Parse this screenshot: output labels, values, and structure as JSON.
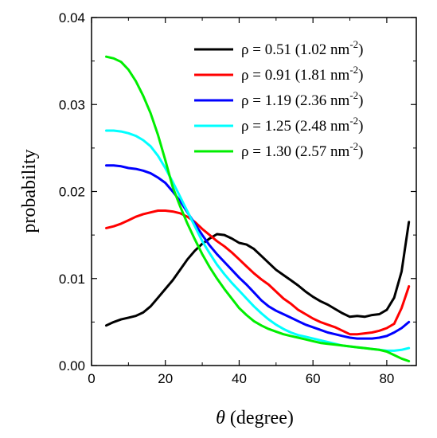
{
  "chart_data": {
    "type": "line",
    "xlabel_symbol": "θ",
    "xlabel_rest": " (degree)",
    "ylabel": "probability",
    "xlim": [
      0,
      88
    ],
    "ylim": [
      0,
      0.04
    ],
    "x_ticks": [
      0,
      20,
      40,
      60,
      80
    ],
    "x_tick_labels": [
      "0",
      "20",
      "40",
      "60",
      "80"
    ],
    "y_ticks": [
      0,
      0.01,
      0.02,
      0.03,
      0.04
    ],
    "y_tick_labels": [
      "0.00",
      "0.01",
      "0.02",
      "0.03",
      "0.04"
    ],
    "legend_position": "top-right",
    "series": [
      {
        "name": "ρ = 0.51",
        "label_main": "ρ = 0.51  (1.02 nm",
        "label_sup": "-2",
        "label_end": ")",
        "color": "#000000",
        "points": [
          [
            4,
            0.0046
          ],
          [
            6,
            0.005
          ],
          [
            8,
            0.0053
          ],
          [
            10,
            0.0055
          ],
          [
            12,
            0.0057
          ],
          [
            14,
            0.0061
          ],
          [
            16,
            0.0068
          ],
          [
            18,
            0.0078
          ],
          [
            20,
            0.0088
          ],
          [
            22,
            0.0098
          ],
          [
            24,
            0.011
          ],
          [
            26,
            0.0122
          ],
          [
            28,
            0.0132
          ],
          [
            30,
            0.014
          ],
          [
            32,
            0.0146
          ],
          [
            34,
            0.0151
          ],
          [
            36,
            0.015
          ],
          [
            38,
            0.0146
          ],
          [
            40,
            0.0141
          ],
          [
            42,
            0.0139
          ],
          [
            44,
            0.0134
          ],
          [
            46,
            0.0126
          ],
          [
            48,
            0.0118
          ],
          [
            50,
            0.011
          ],
          [
            52,
            0.0104
          ],
          [
            54,
            0.0098
          ],
          [
            56,
            0.0092
          ],
          [
            58,
            0.0085
          ],
          [
            60,
            0.0079
          ],
          [
            62,
            0.0074
          ],
          [
            64,
            0.007
          ],
          [
            66,
            0.0065
          ],
          [
            68,
            0.006
          ],
          [
            70,
            0.0056
          ],
          [
            72,
            0.0057
          ],
          [
            74,
            0.0056
          ],
          [
            76,
            0.0058
          ],
          [
            78,
            0.0059
          ],
          [
            80,
            0.0064
          ],
          [
            82,
            0.0078
          ],
          [
            84,
            0.0108
          ],
          [
            86,
            0.0165
          ]
        ]
      },
      {
        "name": "ρ = 0.91",
        "label_main": "ρ = 0.91  (1.81 nm",
        "label_sup": "-2",
        "label_end": ")",
        "color": "#ff0000",
        "points": [
          [
            4,
            0.0158
          ],
          [
            6,
            0.016
          ],
          [
            8,
            0.0163
          ],
          [
            10,
            0.0167
          ],
          [
            12,
            0.0171
          ],
          [
            14,
            0.0174
          ],
          [
            16,
            0.0176
          ],
          [
            18,
            0.0178
          ],
          [
            20,
            0.0178
          ],
          [
            22,
            0.0177
          ],
          [
            24,
            0.0175
          ],
          [
            26,
            0.0171
          ],
          [
            28,
            0.0165
          ],
          [
            30,
            0.0157
          ],
          [
            32,
            0.015
          ],
          [
            34,
            0.0143
          ],
          [
            36,
            0.0137
          ],
          [
            38,
            0.013
          ],
          [
            40,
            0.0122
          ],
          [
            42,
            0.0114
          ],
          [
            44,
            0.0106
          ],
          [
            46,
            0.0099
          ],
          [
            48,
            0.0093
          ],
          [
            50,
            0.0085
          ],
          [
            52,
            0.0077
          ],
          [
            54,
            0.0071
          ],
          [
            56,
            0.0064
          ],
          [
            58,
            0.0059
          ],
          [
            60,
            0.0054
          ],
          [
            62,
            0.005
          ],
          [
            64,
            0.0047
          ],
          [
            66,
            0.0044
          ],
          [
            68,
            0.004
          ],
          [
            70,
            0.0036
          ],
          [
            72,
            0.0036
          ],
          [
            74,
            0.0037
          ],
          [
            76,
            0.0038
          ],
          [
            78,
            0.004
          ],
          [
            80,
            0.0043
          ],
          [
            82,
            0.0048
          ],
          [
            84,
            0.0066
          ],
          [
            86,
            0.0091
          ]
        ]
      },
      {
        "name": "ρ = 1.19",
        "label_main": "ρ = 1.19  (2.36 nm",
        "label_sup": "-2",
        "label_end": ")",
        "color": "#0000ff",
        "points": [
          [
            4,
            0.023
          ],
          [
            6,
            0.023
          ],
          [
            8,
            0.0229
          ],
          [
            10,
            0.0227
          ],
          [
            12,
            0.0226
          ],
          [
            14,
            0.0224
          ],
          [
            16,
            0.0221
          ],
          [
            18,
            0.0216
          ],
          [
            20,
            0.021
          ],
          [
            22,
            0.02
          ],
          [
            24,
            0.0189
          ],
          [
            26,
            0.0176
          ],
          [
            28,
            0.0163
          ],
          [
            30,
            0.015
          ],
          [
            32,
            0.0138
          ],
          [
            34,
            0.0128
          ],
          [
            36,
            0.0119
          ],
          [
            38,
            0.011
          ],
          [
            40,
            0.0101
          ],
          [
            42,
            0.0093
          ],
          [
            44,
            0.0084
          ],
          [
            46,
            0.0075
          ],
          [
            48,
            0.0068
          ],
          [
            50,
            0.0063
          ],
          [
            52,
            0.0059
          ],
          [
            54,
            0.0055
          ],
          [
            56,
            0.0051
          ],
          [
            58,
            0.0047
          ],
          [
            60,
            0.0044
          ],
          [
            62,
            0.0041
          ],
          [
            64,
            0.0038
          ],
          [
            66,
            0.0036
          ],
          [
            68,
            0.0034
          ],
          [
            70,
            0.0032
          ],
          [
            72,
            0.0031
          ],
          [
            74,
            0.0031
          ],
          [
            76,
            0.0031
          ],
          [
            78,
            0.0032
          ],
          [
            80,
            0.0034
          ],
          [
            82,
            0.0038
          ],
          [
            84,
            0.0043
          ],
          [
            86,
            0.005
          ]
        ]
      },
      {
        "name": "ρ = 1.25",
        "label_main": "ρ = 1.25  (2.48 nm",
        "label_sup": "-2",
        "label_end": ")",
        "color": "#00ffff",
        "points": [
          [
            4,
            0.027
          ],
          [
            6,
            0.027
          ],
          [
            8,
            0.0269
          ],
          [
            10,
            0.0267
          ],
          [
            12,
            0.0264
          ],
          [
            14,
            0.0259
          ],
          [
            16,
            0.0252
          ],
          [
            18,
            0.0241
          ],
          [
            20,
            0.0227
          ],
          [
            22,
            0.0211
          ],
          [
            24,
            0.0194
          ],
          [
            26,
            0.0177
          ],
          [
            28,
            0.016
          ],
          [
            30,
            0.0143
          ],
          [
            32,
            0.0129
          ],
          [
            34,
            0.0116
          ],
          [
            36,
            0.0105
          ],
          [
            38,
            0.0095
          ],
          [
            40,
            0.0086
          ],
          [
            42,
            0.0077
          ],
          [
            44,
            0.0068
          ],
          [
            46,
            0.006
          ],
          [
            48,
            0.0053
          ],
          [
            50,
            0.0047
          ],
          [
            52,
            0.0042
          ],
          [
            54,
            0.0038
          ],
          [
            56,
            0.0035
          ],
          [
            58,
            0.0033
          ],
          [
            60,
            0.0031
          ],
          [
            62,
            0.0029
          ],
          [
            64,
            0.0027
          ],
          [
            66,
            0.0025
          ],
          [
            68,
            0.0023
          ],
          [
            70,
            0.0022
          ],
          [
            72,
            0.0021
          ],
          [
            74,
            0.002
          ],
          [
            76,
            0.0019
          ],
          [
            78,
            0.0018
          ],
          [
            80,
            0.0017
          ],
          [
            82,
            0.0017
          ],
          [
            84,
            0.0018
          ],
          [
            86,
            0.002
          ]
        ]
      },
      {
        "name": "ρ = 1.30",
        "label_main": "ρ = 1.30  (2.57 nm",
        "label_sup": "-2",
        "label_end": ")",
        "color": "#00ee00",
        "points": [
          [
            4,
            0.0355
          ],
          [
            6,
            0.0353
          ],
          [
            8,
            0.0349
          ],
          [
            10,
            0.034
          ],
          [
            12,
            0.0327
          ],
          [
            14,
            0.031
          ],
          [
            16,
            0.029
          ],
          [
            18,
            0.0265
          ],
          [
            20,
            0.0236
          ],
          [
            22,
            0.0205
          ],
          [
            24,
            0.0183
          ],
          [
            26,
            0.0163
          ],
          [
            28,
            0.0145
          ],
          [
            30,
            0.0128
          ],
          [
            32,
            0.0113
          ],
          [
            34,
            0.01
          ],
          [
            36,
            0.0088
          ],
          [
            38,
            0.0077
          ],
          [
            40,
            0.0066
          ],
          [
            42,
            0.0058
          ],
          [
            44,
            0.0051
          ],
          [
            46,
            0.0046
          ],
          [
            48,
            0.0042
          ],
          [
            50,
            0.0039
          ],
          [
            52,
            0.0036
          ],
          [
            54,
            0.0034
          ],
          [
            56,
            0.0032
          ],
          [
            58,
            0.003
          ],
          [
            60,
            0.0028
          ],
          [
            62,
            0.0026
          ],
          [
            64,
            0.0025
          ],
          [
            66,
            0.0024
          ],
          [
            68,
            0.0023
          ],
          [
            70,
            0.0022
          ],
          [
            72,
            0.0021
          ],
          [
            74,
            0.002
          ],
          [
            76,
            0.0019
          ],
          [
            78,
            0.0018
          ],
          [
            80,
            0.0016
          ],
          [
            82,
            0.0012
          ],
          [
            84,
            0.0008
          ],
          [
            86,
            0.0005
          ]
        ]
      }
    ]
  }
}
